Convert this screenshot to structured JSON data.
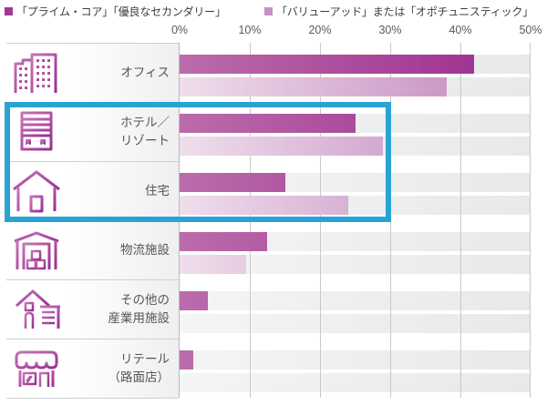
{
  "legend": {
    "items": [
      {
        "label": "「プライム・コア」「優良なセカンダリー」",
        "color": "#a03795"
      },
      {
        "label": "「バリューアッド」または「オポチュニスティック」",
        "color": "#c88fc2"
      }
    ]
  },
  "axis": {
    "ticks": [
      "0%",
      "10%",
      "20%",
      "30%",
      "40%",
      "50%"
    ],
    "max": 50
  },
  "rows": [
    {
      "label": "オフィス",
      "icon": "office-buildings-icon",
      "prime": 42,
      "value_add": 38
    },
    {
      "label": "ホテル／\nリゾート",
      "icon": "hotel-resort-icon",
      "prime": 25,
      "value_add": 29
    },
    {
      "label": "住宅",
      "icon": "house-icon",
      "prime": 15,
      "value_add": 24
    },
    {
      "label": "物流施設",
      "icon": "warehouse-icon",
      "prime": 12.5,
      "value_add": 9.5
    },
    {
      "label": "その他の\n産業用施設",
      "icon": "industrial-facility-icon",
      "prime": 4,
      "value_add": 0
    },
    {
      "label": "リテール\n（路面店）",
      "icon": "retail-shop-icon",
      "prime": 2,
      "value_add": 0
    }
  ],
  "chart_data": {
    "type": "bar",
    "orientation": "horizontal",
    "categories": [
      "オフィス",
      "ホテル／リゾート",
      "住宅",
      "物流施設",
      "その他の産業用施設",
      "リテール（路面店）"
    ],
    "series": [
      {
        "name": "「プライム・コア」「優良なセカンダリー」",
        "color": "#9c2a8e",
        "values": [
          42,
          25,
          15,
          12.5,
          4,
          2
        ]
      },
      {
        "name": "「バリューアッド」または「オポチュニスティック」",
        "color": "#c083bb",
        "values": [
          38,
          29,
          24,
          9.5,
          0,
          0
        ]
      }
    ],
    "xlim": [
      0,
      50
    ],
    "tick_labels": [
      "0%",
      "10%",
      "20%",
      "30%",
      "40%",
      "50%"
    ],
    "grid": true,
    "legend_position": "top",
    "highlight_box": {
      "categories": [
        "ホテル／リゾート",
        "住宅"
      ],
      "color": "#29a3d4"
    }
  }
}
